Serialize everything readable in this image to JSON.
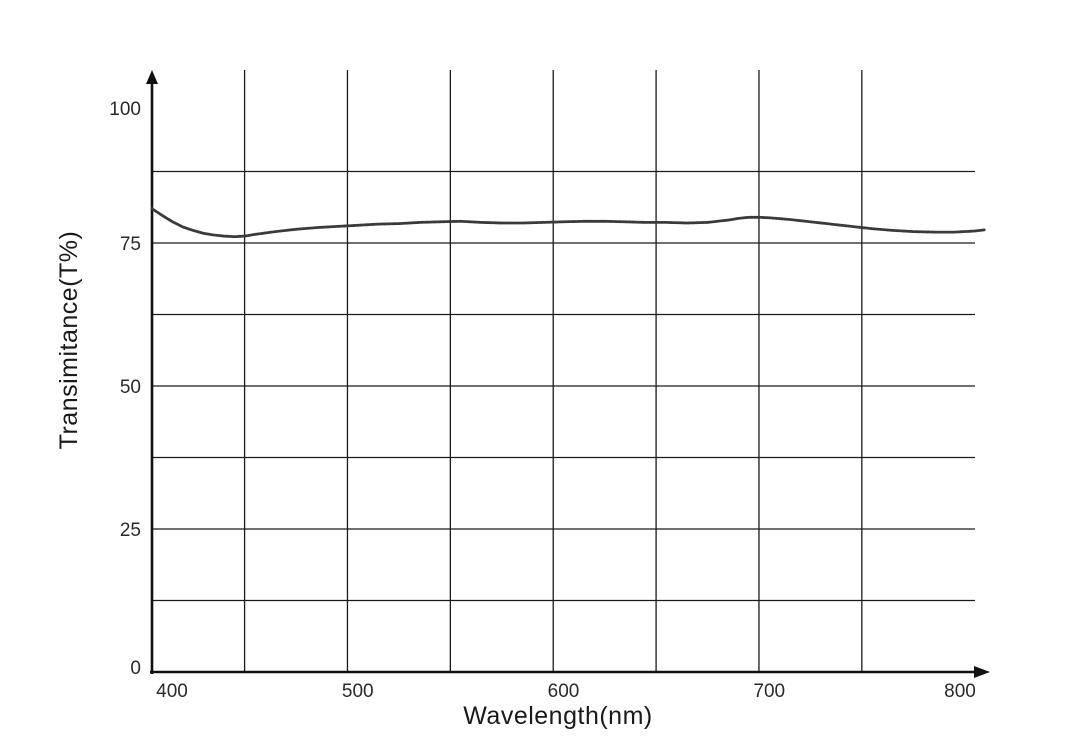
{
  "chart_data": {
    "type": "line",
    "title": "",
    "xlabel": "Wavelength(nm)",
    "ylabel": "Transimitance(T%)",
    "xlim": [
      400,
      800
    ],
    "ylim": [
      0,
      100
    ],
    "x_ticks": [
      {
        "value": 400,
        "label": "400"
      },
      {
        "value": 500,
        "label": "500"
      },
      {
        "value": 600,
        "label": "600"
      },
      {
        "value": 700,
        "label": "700"
      },
      {
        "value": 800,
        "label": "800"
      }
    ],
    "y_ticks": [
      {
        "value": 0,
        "label": "0"
      },
      {
        "value": 25,
        "label": "25"
      },
      {
        "value": 50,
        "label": "50"
      },
      {
        "value": 75,
        "label": "75"
      },
      {
        "value": 100,
        "label": "100"
      }
    ],
    "x_grid": [
      445,
      495,
      545,
      595,
      645,
      695,
      745
    ],
    "y_grid": [
      12.5,
      25,
      37.5,
      50,
      62.5,
      75,
      87.5
    ],
    "grid": true,
    "legend": "none",
    "colors": {
      "line": "#3a3a3a",
      "grid": "#1a1a1a",
      "axis": "#111111"
    },
    "series": [
      {
        "x": [
          400,
          405,
          410,
          415,
          420,
          425,
          430,
          435,
          440,
          445,
          450,
          460,
          470,
          480,
          490,
          500,
          510,
          520,
          530,
          540,
          550,
          560,
          570,
          580,
          590,
          600,
          610,
          620,
          630,
          640,
          650,
          660,
          670,
          680,
          685,
          690,
          695,
          700,
          710,
          720,
          730,
          740,
          750,
          760,
          770,
          780,
          790,
          800,
          805
        ],
        "y": [
          81.0,
          79.8,
          78.7,
          77.8,
          77.2,
          76.7,
          76.4,
          76.2,
          76.1,
          76.2,
          76.5,
          77.0,
          77.4,
          77.7,
          77.9,
          78.1,
          78.3,
          78.4,
          78.6,
          78.7,
          78.8,
          78.6,
          78.5,
          78.5,
          78.6,
          78.7,
          78.8,
          78.8,
          78.7,
          78.6,
          78.6,
          78.5,
          78.6,
          79.0,
          79.3,
          79.5,
          79.5,
          79.4,
          79.1,
          78.7,
          78.3,
          77.9,
          77.5,
          77.2,
          77.0,
          76.9,
          76.9,
          77.1,
          77.3
        ]
      }
    ]
  }
}
